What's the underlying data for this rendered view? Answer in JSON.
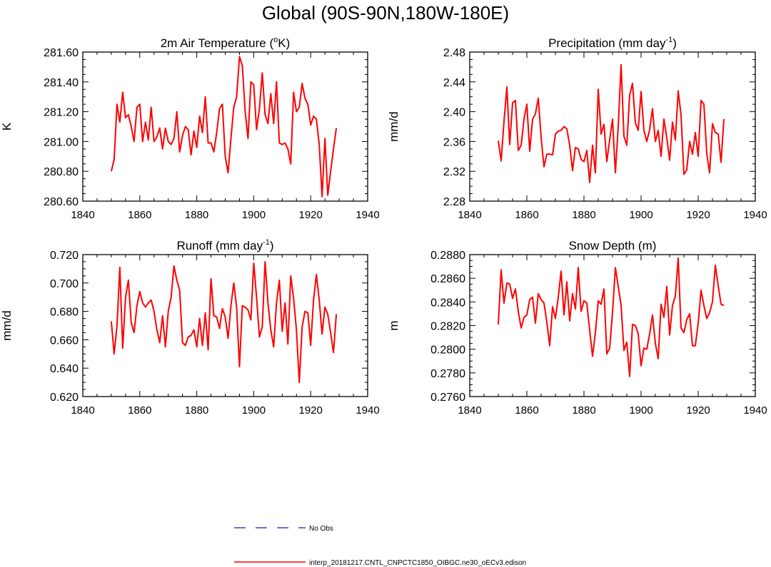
{
  "title": "Global (90S-90N,180W-180E)",
  "legend": [
    {
      "label": "No Obs",
      "color": "#3c3cdc",
      "style": "dashed"
    },
    {
      "label": "interp_20181217.CNTL_CNPCTC1850_OIBGC.ne30_oECv3.edison",
      "color": "#ff0000",
      "style": "solid"
    }
  ],
  "chart_data": [
    {
      "type": "line",
      "title_main": "2m Air Temperature (",
      "title_sup": "o",
      "title_end": "K)",
      "ylabel": "K",
      "xlim": [
        1840,
        1940
      ],
      "ylim": [
        280.6,
        281.6
      ],
      "xticks": [
        1840,
        1860,
        1880,
        1900,
        1920,
        1940
      ],
      "xtick_labels": [
        "1840",
        "1860",
        "1880",
        "1900",
        "1920",
        "1940"
      ],
      "yticks": [
        280.6,
        280.8,
        281.0,
        281.2,
        281.4,
        281.6
      ],
      "ytick_labels": [
        "280.60",
        "280.80",
        "281.00",
        "281.20",
        "281.40",
        "281.60"
      ],
      "x_start": 1850,
      "series": [
        {
          "name": "interp_20181217.CNTL_CNPCTC1850_OIBGC.ne30_oECv3.edison",
          "color": "#ff0000",
          "values": [
            280.8,
            280.88,
            281.25,
            281.13,
            281.33,
            281.16,
            281.18,
            281.1,
            281.0,
            281.23,
            281.25,
            281.0,
            281.13,
            281.01,
            281.23,
            281.0,
            281.03,
            281.09,
            280.95,
            281.09,
            281.0,
            280.98,
            281.02,
            281.2,
            280.93,
            281.04,
            281.1,
            281.08,
            280.91,
            281.07,
            280.96,
            281.17,
            281.06,
            281.3,
            280.99,
            280.99,
            280.93,
            281.06,
            281.22,
            281.25,
            280.9,
            280.79,
            281.02,
            281.23,
            281.3,
            281.57,
            281.51,
            281.2,
            281.02,
            281.4,
            281.38,
            281.08,
            281.22,
            281.46,
            281.18,
            281.12,
            281.32,
            281.12,
            281.4,
            280.99,
            280.98,
            280.99,
            280.95,
            280.85,
            281.33,
            281.2,
            281.23,
            281.39,
            281.29,
            281.25,
            281.11,
            281.17,
            281.15,
            280.98,
            280.63,
            281.02,
            280.64,
            280.8,
            280.95,
            281.09
          ]
        }
      ]
    },
    {
      "type": "line",
      "title_main": "Precipitation (mm day",
      "title_sup": "-1",
      "title_end": ")",
      "ylabel": "mm/d",
      "xlim": [
        1840,
        1940
      ],
      "ylim": [
        2.28,
        2.48
      ],
      "xticks": [
        1840,
        1860,
        1880,
        1900,
        1920,
        1940
      ],
      "xtick_labels": [
        "1840",
        "1860",
        "1880",
        "1900",
        "1920",
        "1940"
      ],
      "yticks": [
        2.28,
        2.32,
        2.36,
        2.4,
        2.44,
        2.48
      ],
      "ytick_labels": [
        "2.28",
        "2.32",
        "2.36",
        "2.40",
        "2.44",
        "2.48"
      ],
      "x_start": 1850,
      "series": [
        {
          "name": "interp_20181217.CNTL_CNPCTC1850_OIBGC.ne30_oECv3.edison",
          "color": "#ff0000",
          "values": [
            2.361,
            2.334,
            2.387,
            2.433,
            2.356,
            2.412,
            2.415,
            2.348,
            2.355,
            2.39,
            2.41,
            2.347,
            2.39,
            2.397,
            2.418,
            2.365,
            2.326,
            2.343,
            2.343,
            2.342,
            2.37,
            2.374,
            2.375,
            2.38,
            2.377,
            2.355,
            2.321,
            2.352,
            2.35,
            2.336,
            2.333,
            2.348,
            2.305,
            2.355,
            2.318,
            2.43,
            2.37,
            2.383,
            2.333,
            2.362,
            2.39,
            2.318,
            2.38,
            2.463,
            2.367,
            2.355,
            2.422,
            2.438,
            2.385,
            2.375,
            2.427,
            2.375,
            2.36,
            2.376,
            2.404,
            2.36,
            2.375,
            2.34,
            2.39,
            2.365,
            2.335,
            2.386,
            2.362,
            2.428,
            2.395,
            2.316,
            2.322,
            2.36,
            2.343,
            2.372,
            2.34,
            2.415,
            2.41,
            2.344,
            2.318,
            2.384,
            2.372,
            2.37,
            2.332,
            2.39
          ]
        }
      ]
    },
    {
      "type": "line",
      "title_main": "Runoff (mm day",
      "title_sup": "-1",
      "title_end": ")",
      "ylabel": "mm/d",
      "xlim": [
        1840,
        1940
      ],
      "ylim": [
        0.62,
        0.72
      ],
      "xticks": [
        1840,
        1860,
        1880,
        1900,
        1920,
        1940
      ],
      "xtick_labels": [
        "1840",
        "1860",
        "1880",
        "1900",
        "1920",
        "1940"
      ],
      "yticks": [
        0.62,
        0.64,
        0.66,
        0.68,
        0.7,
        0.72
      ],
      "ytick_labels": [
        "0.620",
        "0.640",
        "0.660",
        "0.680",
        "0.700",
        "0.720"
      ],
      "x_start": 1850,
      "series": [
        {
          "name": "interp_20181217.CNTL_CNPCTC1850_OIBGC.ne30_oECv3.edison",
          "color": "#ff0000",
          "values": [
            0.673,
            0.65,
            0.67,
            0.711,
            0.654,
            0.69,
            0.702,
            0.672,
            0.665,
            0.684,
            0.694,
            0.686,
            0.683,
            0.686,
            0.688,
            0.68,
            0.667,
            0.658,
            0.677,
            0.655,
            0.68,
            0.69,
            0.712,
            0.702,
            0.695,
            0.658,
            0.656,
            0.662,
            0.663,
            0.667,
            0.655,
            0.675,
            0.656,
            0.679,
            0.653,
            0.703,
            0.677,
            0.676,
            0.668,
            0.682,
            0.676,
            0.661,
            0.684,
            0.7,
            0.683,
            0.641,
            0.684,
            0.683,
            0.681,
            0.674,
            0.714,
            0.69,
            0.662,
            0.669,
            0.715,
            0.686,
            0.667,
            0.655,
            0.686,
            0.702,
            0.666,
            0.686,
            0.657,
            0.705,
            0.689,
            0.667,
            0.63,
            0.669,
            0.68,
            0.679,
            0.656,
            0.688,
            0.706,
            0.688,
            0.664,
            0.683,
            0.678,
            0.665,
            0.651,
            0.678
          ]
        }
      ]
    },
    {
      "type": "line",
      "title_main": "Snow Depth (m)",
      "title_sup": "",
      "title_end": "",
      "ylabel": "m",
      "xlim": [
        1840,
        1940
      ],
      "ylim": [
        0.276,
        0.288
      ],
      "xticks": [
        1840,
        1860,
        1880,
        1900,
        1920,
        1940
      ],
      "xtick_labels": [
        "1840",
        "1860",
        "1880",
        "1900",
        "1920",
        "1940"
      ],
      "yticks": [
        0.276,
        0.278,
        0.28,
        0.282,
        0.284,
        0.286,
        0.288
      ],
      "ytick_labels": [
        "0.2760",
        "0.2780",
        "0.2800",
        "0.2820",
        "0.2840",
        "0.2860",
        "0.2880"
      ],
      "x_start": 1850,
      "series": [
        {
          "name": "interp_20181217.CNTL_CNPCTC1850_OIBGC.ne30_oECv3.edison",
          "color": "#ff0000",
          "values": [
            0.2821,
            0.2867,
            0.2839,
            0.2856,
            0.2855,
            0.2843,
            0.2851,
            0.2832,
            0.2818,
            0.2827,
            0.2829,
            0.2842,
            0.2844,
            0.2822,
            0.2847,
            0.2842,
            0.2839,
            0.2823,
            0.2803,
            0.2836,
            0.2826,
            0.2844,
            0.2866,
            0.2829,
            0.2857,
            0.2824,
            0.2847,
            0.2834,
            0.2869,
            0.2832,
            0.2841,
            0.2839,
            0.2816,
            0.2794,
            0.2814,
            0.2841,
            0.2838,
            0.2851,
            0.2796,
            0.2801,
            0.2831,
            0.2869,
            0.2853,
            0.2837,
            0.2799,
            0.2806,
            0.2777,
            0.2821,
            0.282,
            0.2813,
            0.2786,
            0.2801,
            0.28,
            0.2813,
            0.2829,
            0.2805,
            0.2792,
            0.2838,
            0.2827,
            0.2853,
            0.2812,
            0.2837,
            0.2845,
            0.2877,
            0.2818,
            0.2814,
            0.2825,
            0.283,
            0.2803,
            0.2803,
            0.2822,
            0.285,
            0.2837,
            0.2826,
            0.2831,
            0.284,
            0.2871,
            0.2854,
            0.2838,
            0.2837
          ]
        }
      ]
    }
  ]
}
